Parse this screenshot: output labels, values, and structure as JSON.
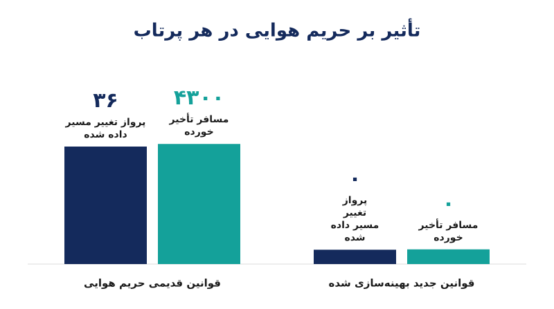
{
  "chart_data": {
    "type": "bar",
    "title": "تأثیر بر حریم هوایی در هر پرتاب",
    "categories": [
      "قوانین قدیمی حریم هوایی",
      "قوانین جدید بهینه‌سازی شده"
    ],
    "series": [
      {
        "name": "پرواز تغییر مسیر داده شده",
        "color": "#142a5c",
        "values": [
          36,
          0
        ],
        "value_labels": [
          "۳۶",
          "۰"
        ]
      },
      {
        "name": "مسافر تأخیر خورده",
        "color": "#14a19a",
        "values": [
          4300,
          0
        ],
        "value_labels": [
          "۴۳۰۰",
          "۰"
        ],
        "axis": "y2"
      }
    ],
    "ylim": [
      -5,
      60
    ],
    "y2lim": [
      -600,
      7000
    ]
  }
}
